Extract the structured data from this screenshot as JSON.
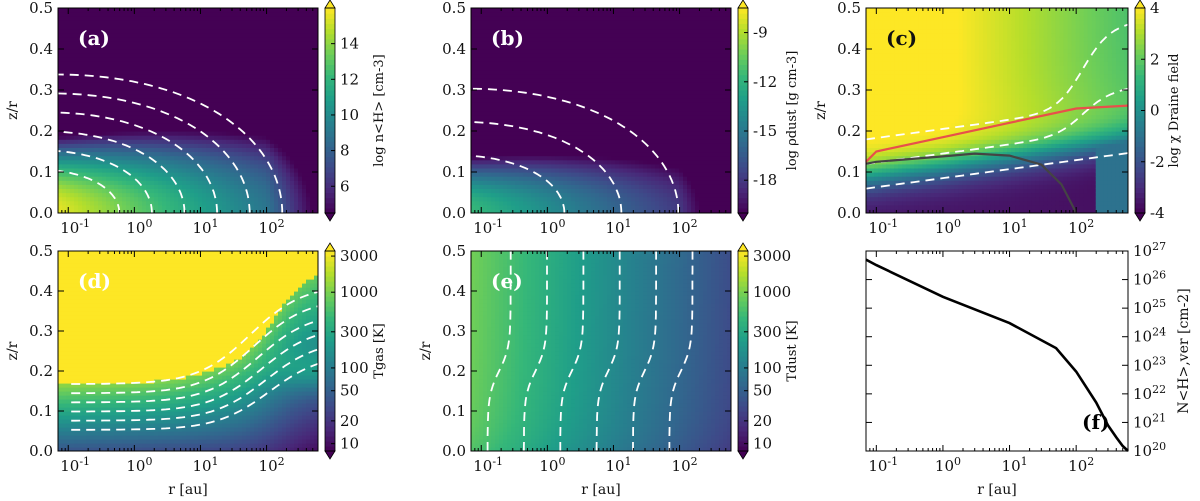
{
  "colors": {
    "viridis_low": "#440154",
    "viridis_high": "#fde725",
    "contour": "#ffffff",
    "curve_red": "#e8504a",
    "curve_dark": "#444444"
  },
  "chart_data": [
    {
      "id": "a",
      "type": "heatmap",
      "panel_label": "(a)",
      "xlabel": "",
      "ylabel": "z/r",
      "xscale": "log",
      "xlim": [
        0.07,
        600
      ],
      "ylim": [
        0,
        0.5
      ],
      "xticks": [
        "10-1",
        "100",
        "101",
        "102"
      ],
      "yticks": [
        "0.0",
        "0.1",
        "0.2",
        "0.3",
        "0.4",
        "0.5"
      ],
      "colorbar": {
        "label": "log n<H> [cm-3]",
        "ticks": [
          "6",
          "8",
          "10",
          "12",
          "14"
        ],
        "range": [
          4.5,
          16
        ]
      },
      "field": "density_gas",
      "contours": [
        6,
        7.5,
        9,
        10.5,
        12,
        13.5
      ]
    },
    {
      "id": "b",
      "type": "heatmap",
      "panel_label": "(b)",
      "xlabel": "",
      "ylabel": "",
      "xscale": "log",
      "xlim": [
        0.07,
        600
      ],
      "ylim": [
        0,
        0.5
      ],
      "xticks": [
        "10-1",
        "100",
        "101",
        "102"
      ],
      "yticks": [
        "0.0",
        "0.1",
        "0.2",
        "0.3",
        "0.4",
        "0.5"
      ],
      "colorbar": {
        "label": "log ρdust [g cm-3]",
        "ticks": [
          "-9",
          "-12",
          "-15",
          "-18"
        ],
        "range": [
          -20,
          -7.5
        ]
      },
      "field": "density_dust",
      "contours": [
        -18,
        -16,
        -14
      ]
    },
    {
      "id": "c",
      "type": "heatmap",
      "panel_label": "(c)",
      "xlabel": "",
      "ylabel": "z/r",
      "xscale": "log",
      "xlim": [
        0.07,
        600
      ],
      "ylim": [
        0,
        0.5
      ],
      "xticks": [
        "10-1",
        "100",
        "101",
        "102"
      ],
      "yticks": [
        "0.0",
        "0.1",
        "0.2",
        "0.3",
        "0.4",
        "0.5"
      ],
      "colorbar": {
        "label": "log χ Draine field",
        "ticks": [
          "4",
          "2",
          "0",
          "-2",
          "-4"
        ],
        "range": [
          -4,
          4
        ]
      },
      "field": "radiation",
      "contours": [
        -2,
        0,
        2
      ],
      "lines": [
        {
          "name": "red",
          "color": "#e8504a",
          "x": [
            0.07,
            0.1,
            1,
            10,
            100,
            600
          ],
          "y": [
            0.125,
            0.15,
            0.185,
            0.22,
            0.255,
            0.262
          ]
        },
        {
          "name": "dark",
          "color": "#444444",
          "x": [
            0.07,
            0.1,
            1,
            3,
            10,
            30,
            60,
            90,
            100
          ],
          "y": [
            0.12,
            0.125,
            0.138,
            0.145,
            0.14,
            0.118,
            0.07,
            0.015,
            0.0
          ]
        }
      ]
    },
    {
      "id": "d",
      "type": "heatmap",
      "panel_label": "(d)",
      "xlabel": "r [au]",
      "ylabel": "z/r",
      "xscale": "log",
      "xlim": [
        0.07,
        600
      ],
      "ylim": [
        0,
        0.5
      ],
      "xticks": [
        "10-1",
        "100",
        "101",
        "102"
      ],
      "yticks": [
        "0.0",
        "0.1",
        "0.2",
        "0.3",
        "0.4",
        "0.5"
      ],
      "colorbar": {
        "label": "Tgas [K]",
        "ticks": [
          "3000",
          "1000",
          "300",
          "100",
          "50",
          "20",
          "10"
        ],
        "scale": "log",
        "range": [
          8,
          3500
        ]
      },
      "field": "tgas",
      "contours": [
        20,
        35,
        50,
        100,
        200,
        400
      ]
    },
    {
      "id": "e",
      "type": "heatmap",
      "panel_label": "(e)",
      "xlabel": "r [au]",
      "ylabel": "z/r",
      "xscale": "log",
      "xlim": [
        0.07,
        600
      ],
      "ylim": [
        0,
        0.5
      ],
      "xticks": [
        "10-1",
        "100",
        "101",
        "102"
      ],
      "yticks": [
        "0.0",
        "0.1",
        "0.2",
        "0.3",
        "0.4",
        "0.5"
      ],
      "colorbar": {
        "label": "Tdust [K]",
        "ticks": [
          "3000",
          "1000",
          "300",
          "100",
          "50",
          "20",
          "10"
        ],
        "scale": "log",
        "range": [
          8,
          3500
        ]
      },
      "field": "tdust",
      "contours": [
        20,
        35,
        60,
        100,
        200,
        400
      ]
    },
    {
      "id": "f",
      "type": "line",
      "panel_label": "(f)",
      "xlabel": "r [au]",
      "ylabel": "N<H>,ver [cm-2]",
      "xscale": "log",
      "yscale": "log",
      "xlim": [
        0.07,
        600
      ],
      "ylim": [
        1e+20,
        1e+27
      ],
      "xticks": [
        "10-1",
        "100",
        "101",
        "102"
      ],
      "yticks": [
        "1020",
        "1021",
        "1022",
        "1023",
        "1024",
        "1025",
        "1026",
        "1027"
      ],
      "series": [
        {
          "name": "N_H_vertical",
          "x": [
            0.07,
            0.1,
            1,
            10,
            50,
            100,
            200,
            300,
            400,
            500,
            600
          ],
          "y": [
            5e+26,
            3.2e+26,
            2.5e+25,
            3e+24,
            4e+23,
            6e+22,
            5e+21,
            8e+20,
            3e+20,
            1.5e+20,
            1e+20
          ]
        }
      ]
    }
  ]
}
